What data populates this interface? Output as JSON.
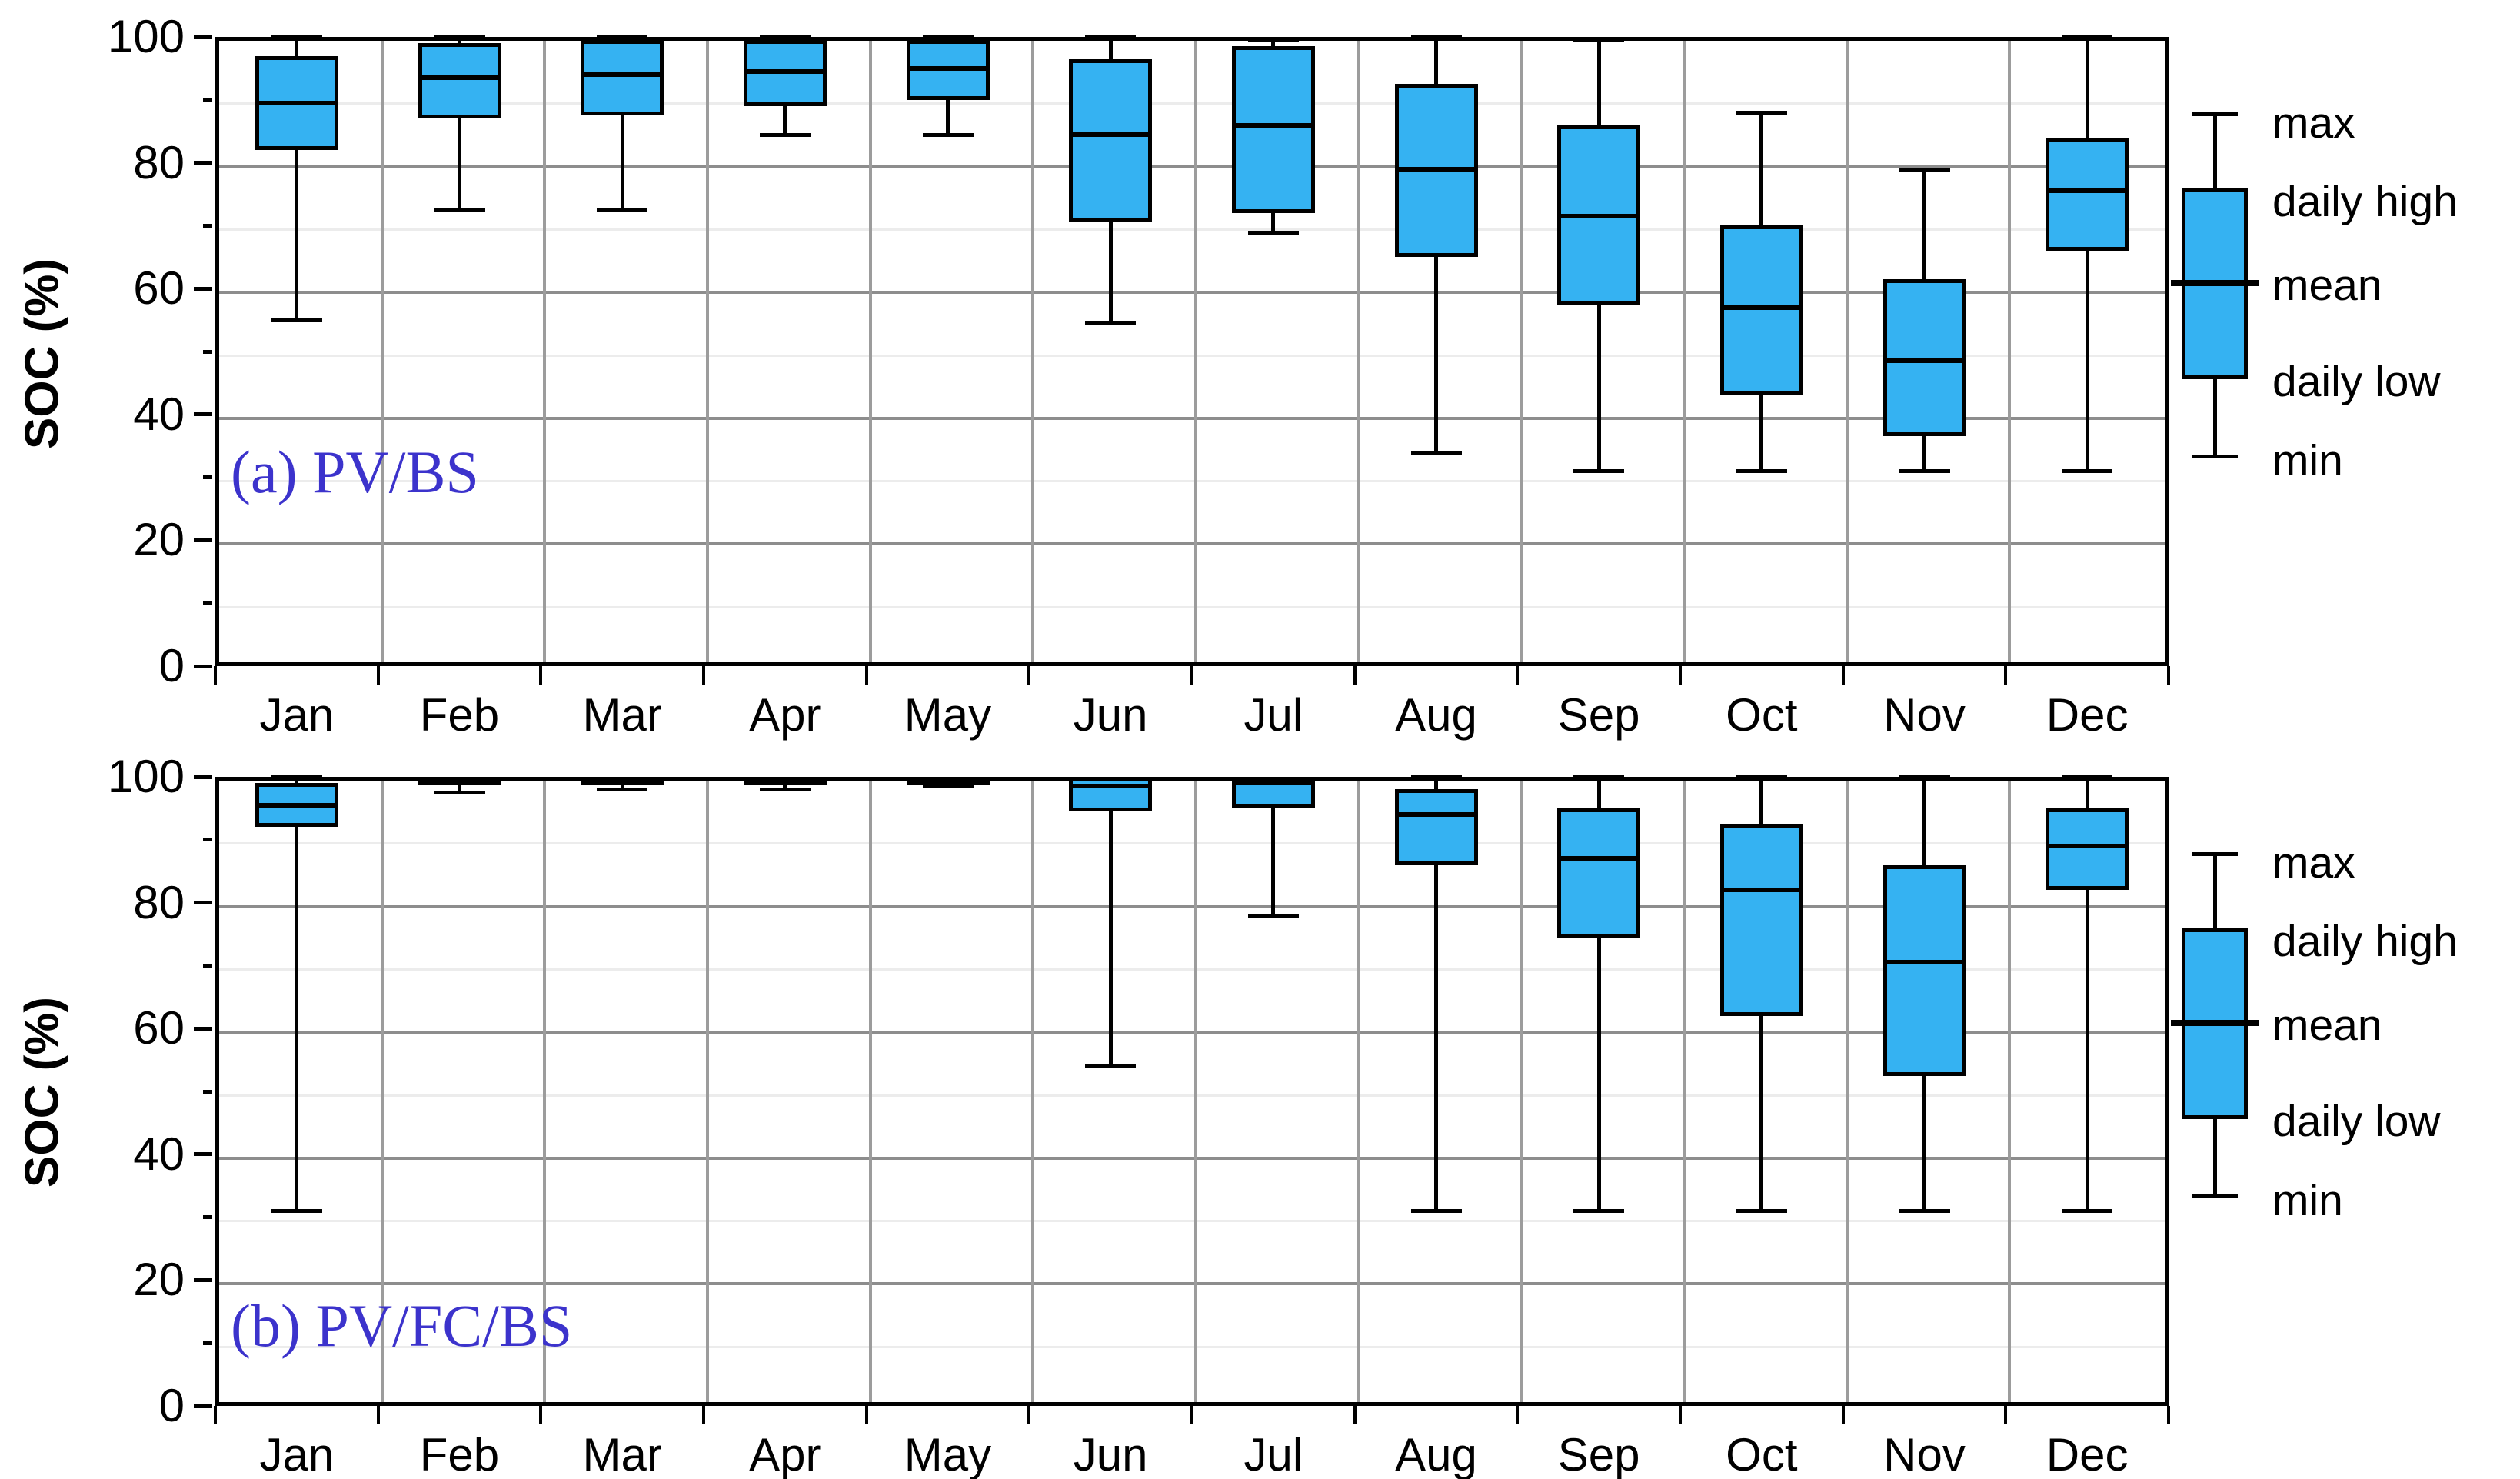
{
  "figure": {
    "ylabel": "SOC (%)",
    "box_fill_color": "#35b2f2",
    "panel_label_color": "#3c33cc",
    "grid_major_color": "#8d8d8d",
    "grid_minor_color": "#ececec",
    "grid_vertical_color": "#9c9c9c"
  },
  "legend": {
    "labels": [
      "max",
      "daily high",
      "mean",
      "daily low",
      "min"
    ]
  },
  "chart_data": [
    {
      "type": "boxplot",
      "panel_label": "(a) PV/BS",
      "ylabel": "SOC (%)",
      "ylim": [
        0,
        100
      ],
      "yticks_major": [
        0,
        20,
        40,
        60,
        80,
        100
      ],
      "yticks_minor": [
        10,
        30,
        50,
        70,
        90
      ],
      "legend_entries": [
        "max",
        "daily high",
        "mean",
        "daily low",
        "min"
      ],
      "categories": [
        "Jan",
        "Feb",
        "Mar",
        "Apr",
        "May",
        "Jun",
        "Jul",
        "Aug",
        "Sep",
        "Oct",
        "Nov",
        "Dec"
      ],
      "series": [
        {
          "month": "Jan",
          "min": 55,
          "daily_low": 82,
          "mean": 89.5,
          "daily_high": 97,
          "max": 100
        },
        {
          "month": "Feb",
          "min": 72.5,
          "daily_low": 87,
          "mean": 93.5,
          "daily_high": 99,
          "max": 100
        },
        {
          "month": "Mar",
          "min": 72.5,
          "daily_low": 87.5,
          "mean": 94,
          "daily_high": 99.5,
          "max": 100
        },
        {
          "month": "Apr",
          "min": 84.5,
          "daily_low": 89,
          "mean": 94.5,
          "daily_high": 99.5,
          "max": 100
        },
        {
          "month": "May",
          "min": 84.5,
          "daily_low": 90,
          "mean": 95,
          "daily_high": 99.5,
          "max": 100
        },
        {
          "month": "Jun",
          "min": 54.5,
          "daily_low": 70.5,
          "mean": 84.5,
          "daily_high": 96.5,
          "max": 100
        },
        {
          "month": "Jul",
          "min": 69,
          "daily_low": 72,
          "mean": 86,
          "daily_high": 98.5,
          "max": 99.5
        },
        {
          "month": "Aug",
          "min": 34,
          "daily_low": 65,
          "mean": 79,
          "daily_high": 92.5,
          "max": 100
        },
        {
          "month": "Sep",
          "min": 31,
          "daily_low": 57.5,
          "mean": 71.5,
          "daily_high": 86,
          "max": 99.5
        },
        {
          "month": "Oct",
          "min": 31,
          "daily_low": 43,
          "mean": 57,
          "daily_high": 70,
          "max": 88
        },
        {
          "month": "Nov",
          "min": 31,
          "daily_low": 36.5,
          "mean": 48.5,
          "daily_high": 61.5,
          "max": 79
        },
        {
          "month": "Dec",
          "min": 31,
          "daily_low": 66,
          "mean": 75.5,
          "daily_high": 84,
          "max": 100
        }
      ]
    },
    {
      "type": "boxplot",
      "panel_label": "(b) PV/FC/BS",
      "ylabel": "SOC (%)",
      "ylim": [
        0,
        100
      ],
      "yticks_major": [
        0,
        20,
        40,
        60,
        80,
        100
      ],
      "yticks_minor": [
        10,
        30,
        50,
        70,
        90
      ],
      "legend_entries": [
        "max",
        "daily high",
        "mean",
        "daily low",
        "min"
      ],
      "categories": [
        "Jan",
        "Feb",
        "Mar",
        "Apr",
        "May",
        "Jun",
        "Jul",
        "Aug",
        "Sep",
        "Oct",
        "Nov",
        "Dec"
      ],
      "series": [
        {
          "month": "Jan",
          "min": 31,
          "daily_low": 92,
          "mean": 95.5,
          "daily_high": 99,
          "max": 100
        },
        {
          "month": "Feb",
          "min": 97.5,
          "daily_low": 99.2,
          "mean": 99.6,
          "daily_high": 100,
          "max": 100
        },
        {
          "month": "Mar",
          "min": 98,
          "daily_low": 99,
          "mean": 99.5,
          "daily_high": 100,
          "max": 100
        },
        {
          "month": "Apr",
          "min": 98,
          "daily_low": 99.2,
          "mean": 99.6,
          "daily_high": 100,
          "max": 100
        },
        {
          "month": "May",
          "min": 98.5,
          "daily_low": 98.8,
          "mean": 99.4,
          "daily_high": 100,
          "max": 100
        },
        {
          "month": "Jun",
          "min": 54,
          "daily_low": 94.5,
          "mean": 98.5,
          "daily_high": 100,
          "max": 100
        },
        {
          "month": "Jul",
          "min": 78,
          "daily_low": 95,
          "mean": 99,
          "daily_high": 100,
          "max": 100
        },
        {
          "month": "Aug",
          "min": 31,
          "daily_low": 86,
          "mean": 94,
          "daily_high": 98,
          "max": 100
        },
        {
          "month": "Sep",
          "min": 31,
          "daily_low": 74.5,
          "mean": 87,
          "daily_high": 95,
          "max": 100
        },
        {
          "month": "Oct",
          "min": 31,
          "daily_low": 62,
          "mean": 82,
          "daily_high": 92.5,
          "max": 100
        },
        {
          "month": "Nov",
          "min": 31,
          "daily_low": 52.5,
          "mean": 70.5,
          "daily_high": 86,
          "max": 100
        },
        {
          "month": "Dec",
          "min": 31,
          "daily_low": 82,
          "mean": 89,
          "daily_high": 95,
          "max": 100
        }
      ]
    }
  ]
}
